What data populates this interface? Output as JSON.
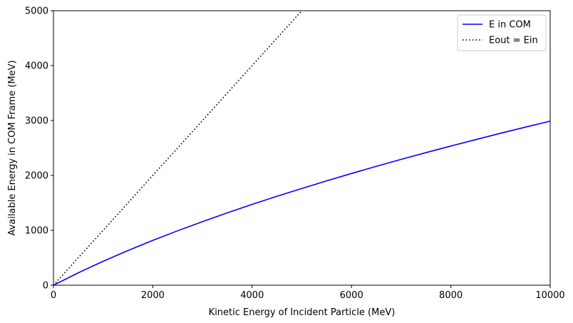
{
  "chart_data": {
    "type": "line",
    "title": "",
    "xlabel": "Kinetic Energy of Incident Particle (MeV)",
    "ylabel": "Available Energy in COM Frame (MeV)",
    "xlim": [
      0,
      10000
    ],
    "ylim": [
      0,
      5000
    ],
    "x_ticks": [
      "0",
      "2000",
      "4000",
      "6000",
      "8000",
      "10000"
    ],
    "y_ticks": [
      "0",
      "1000",
      "2000",
      "3000",
      "4000",
      "5000"
    ],
    "grid": false,
    "legend_position": "top-right",
    "series": [
      {
        "name": "E in COM",
        "color": "#0000ff",
        "style": "solid",
        "x": [
          0,
          500,
          1000,
          1500,
          2000,
          2500,
          3000,
          3500,
          4000,
          4500,
          5000,
          5500,
          6000,
          6500,
          7000,
          7500,
          8000,
          8500,
          9000,
          9500,
          10000
        ],
        "y": [
          0,
          226,
          435,
          631,
          816,
          991,
          1158,
          1318,
          1472,
          1620,
          1762,
          1901,
          2035,
          2165,
          2292,
          2415,
          2535,
          2652,
          2767,
          2879,
          2988
        ]
      },
      {
        "name": "Eout = Ein",
        "color": "#000000",
        "style": "dotted",
        "x": [
          0,
          5000
        ],
        "y": [
          0,
          5000
        ]
      }
    ]
  }
}
